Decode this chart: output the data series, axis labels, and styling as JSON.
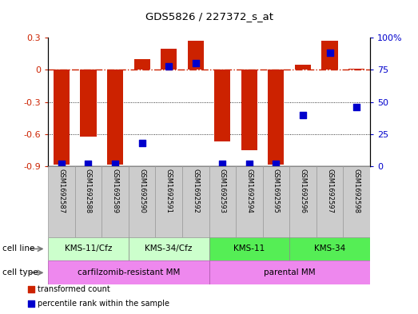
{
  "title": "GDS5826 / 227372_s_at",
  "samples": [
    "GSM1692587",
    "GSM1692588",
    "GSM1692589",
    "GSM1692590",
    "GSM1692591",
    "GSM1692592",
    "GSM1692593",
    "GSM1692594",
    "GSM1692595",
    "GSM1692596",
    "GSM1692597",
    "GSM1692598"
  ],
  "transformed_count": [
    -0.88,
    -0.62,
    -0.88,
    0.1,
    0.2,
    0.27,
    -0.67,
    -0.75,
    -0.88,
    0.05,
    0.27,
    0.01
  ],
  "percentile_rank": [
    2,
    2,
    2,
    18,
    78,
    80,
    2,
    2,
    2,
    40,
    88,
    46
  ],
  "ylim_left": [
    -0.9,
    0.3
  ],
  "ylim_right": [
    0,
    100
  ],
  "yticks_left": [
    -0.9,
    -0.6,
    -0.3,
    0,
    0.3
  ],
  "yticks_right": [
    0,
    25,
    50,
    75,
    100
  ],
  "bar_color": "#cc2200",
  "dot_color": "#0000cc",
  "zero_line_color": "#cc2200",
  "grid_color": "#000000",
  "cell_line_groups": [
    {
      "label": "KMS-11/Cfz",
      "start": 0,
      "end": 3,
      "light_color": "#ccffcc",
      "dark_color": "#ccffcc"
    },
    {
      "label": "KMS-34/Cfz",
      "start": 3,
      "end": 6,
      "light_color": "#ccffcc",
      "dark_color": "#ccffcc"
    },
    {
      "label": "KMS-11",
      "start": 6,
      "end": 9,
      "light_color": "#44dd44",
      "dark_color": "#44dd44"
    },
    {
      "label": "KMS-34",
      "start": 9,
      "end": 12,
      "light_color": "#44dd44",
      "dark_color": "#44dd44"
    }
  ],
  "cell_type_groups": [
    {
      "label": "carfilzomib-resistant MM",
      "start": 0,
      "end": 6,
      "color": "#ee88ee"
    },
    {
      "label": "parental MM",
      "start": 6,
      "end": 12,
      "color": "#ee88ee"
    }
  ],
  "bar_width": 0.6,
  "dot_size": 35,
  "sample_bg_color": "#cccccc",
  "sample_border_color": "#999999"
}
